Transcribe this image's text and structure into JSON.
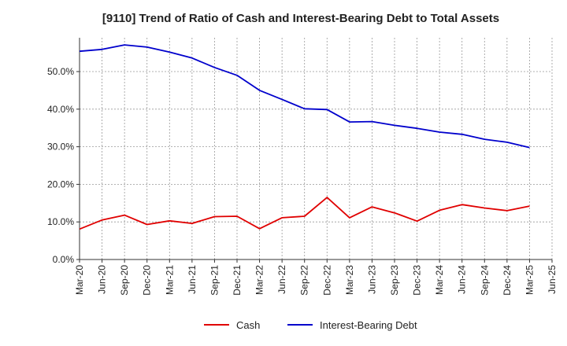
{
  "chart_data": {
    "type": "line",
    "title": "[9110]  Trend of Ratio of Cash and Interest-Bearing Debt to Total Assets",
    "xlabel": "",
    "ylabel": "",
    "ylim": [
      0,
      0.59
    ],
    "yticks": [
      0,
      0.1,
      0.2,
      0.3,
      0.4,
      0.5
    ],
    "ytick_labels": [
      "0.0%",
      "10.0%",
      "20.0%",
      "30.0%",
      "40.0%",
      "50.0%"
    ],
    "categories": [
      "Mar-20",
      "Jun-20",
      "Sep-20",
      "Dec-20",
      "Mar-21",
      "Jun-21",
      "Sep-21",
      "Dec-21",
      "Mar-22",
      "Jun-22",
      "Sep-22",
      "Dec-22",
      "Mar-23",
      "Jun-23",
      "Sep-23",
      "Dec-23",
      "Mar-24",
      "Jun-24",
      "Sep-24",
      "Dec-24",
      "Mar-25",
      "Jun-25"
    ],
    "grid": true,
    "legend_position": "bottom",
    "series": [
      {
        "name": "Cash",
        "color": "#e00000",
        "values": [
          0.081,
          0.105,
          0.118,
          0.093,
          0.103,
          0.096,
          0.114,
          0.115,
          0.082,
          0.111,
          0.115,
          0.165,
          0.111,
          0.14,
          0.124,
          0.102,
          0.131,
          0.146,
          0.137,
          0.13,
          0.142,
          null
        ]
      },
      {
        "name": "Interest-Bearing Debt",
        "color": "#0000cc",
        "values": [
          0.554,
          0.559,
          0.571,
          0.565,
          0.552,
          0.536,
          0.511,
          0.49,
          0.45,
          0.426,
          0.401,
          0.399,
          0.366,
          0.367,
          0.357,
          0.349,
          0.339,
          0.333,
          0.32,
          0.312,
          0.298,
          null
        ]
      }
    ]
  }
}
